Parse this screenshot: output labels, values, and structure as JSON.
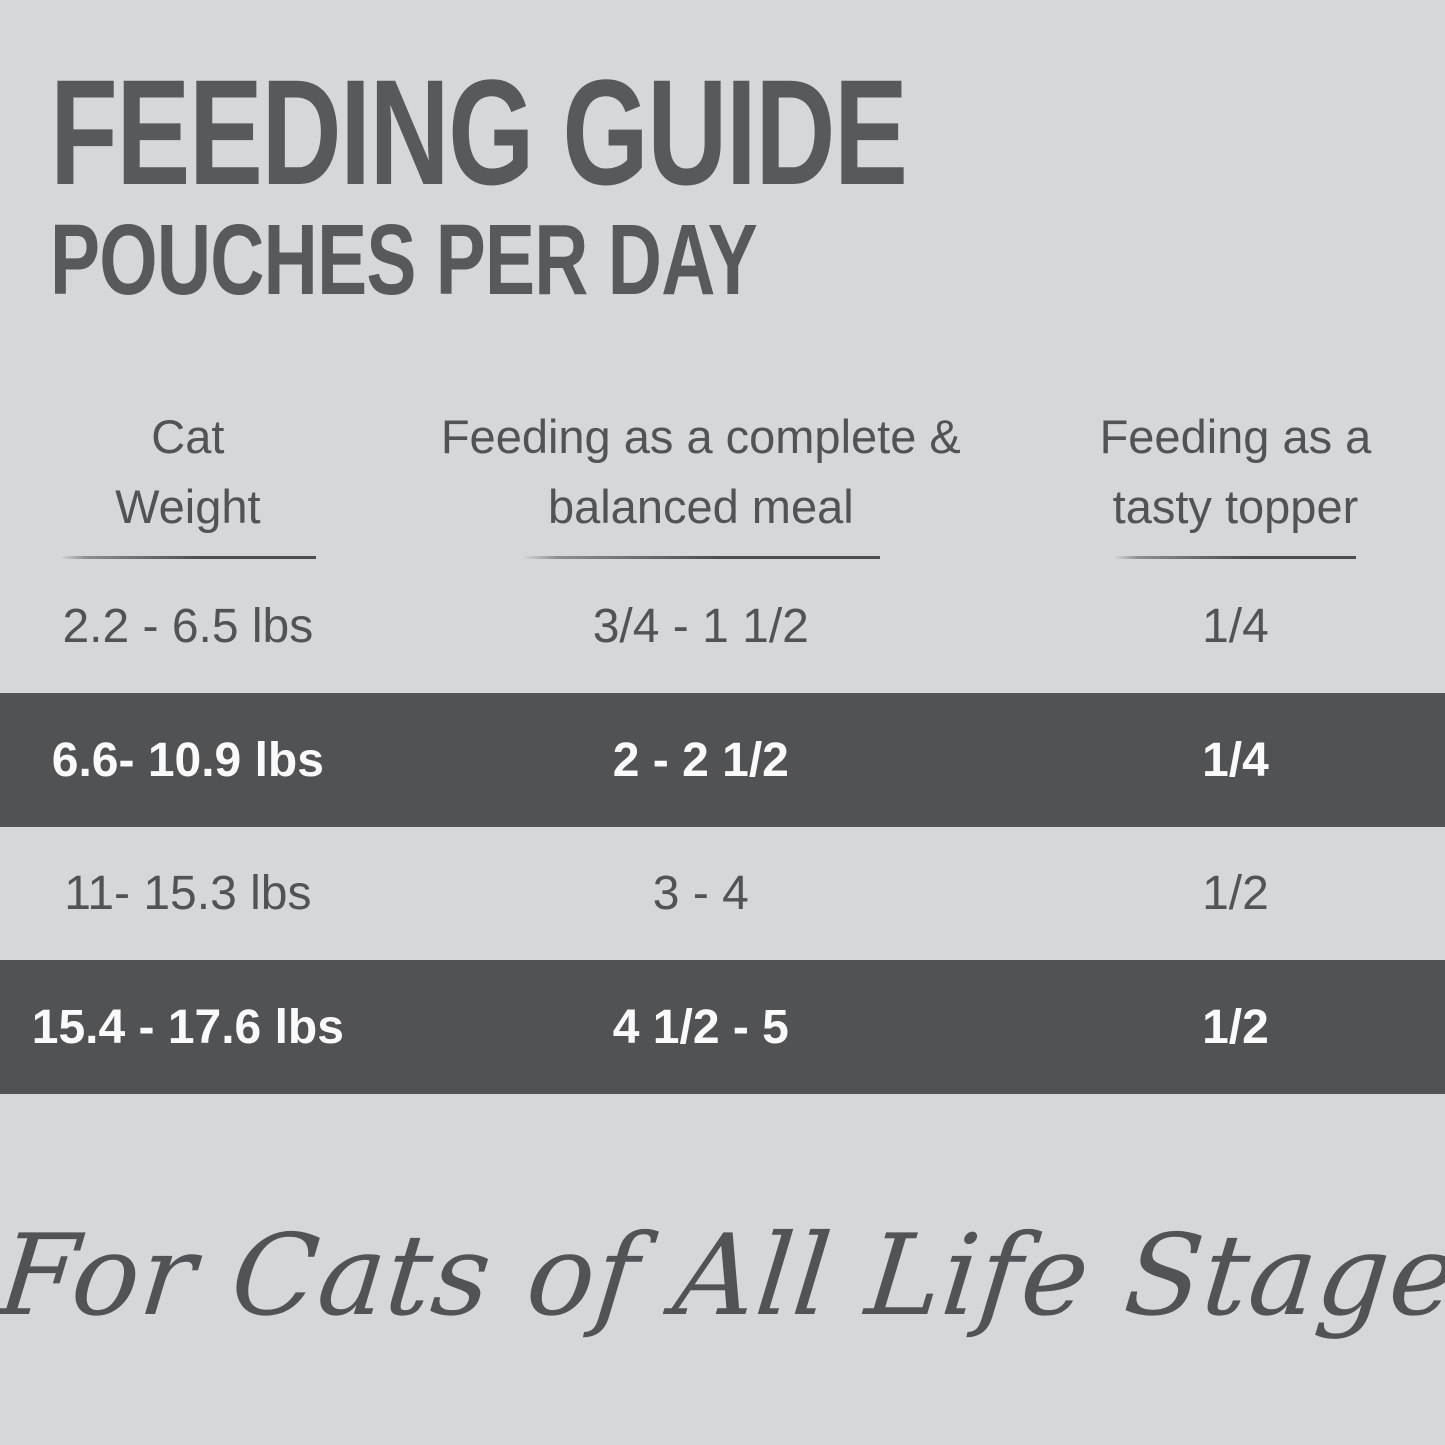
{
  "header": {
    "title": "FEEDING GUIDE",
    "subtitle": "POUCHES PER DAY"
  },
  "table": {
    "columns": [
      {
        "line1": "Cat",
        "line2": "Weight"
      },
      {
        "line1": "Feeding as a complete &",
        "line2": "balanced meal"
      },
      {
        "line1": "Feeding as a",
        "line2": "tasty topper"
      }
    ],
    "rows": [
      {
        "cat_weight": "2.2 - 6.5 lbs",
        "complete_meal": "3/4 - 1 1/2",
        "tasty_topper": "1/4",
        "highlighted": false
      },
      {
        "cat_weight": "6.6- 10.9 lbs",
        "complete_meal": "2 - 2 1/2",
        "tasty_topper": "1/4",
        "highlighted": true
      },
      {
        "cat_weight": "11- 15.3 lbs",
        "complete_meal": "3 - 4",
        "tasty_topper": "1/2",
        "highlighted": false
      },
      {
        "cat_weight": "15.4 - 17.6 lbs",
        "complete_meal": "4 1/2 - 5",
        "tasty_topper": "1/2",
        "highlighted": true
      }
    ]
  },
  "footer": {
    "tagline": "For Cats of All Life Stages"
  },
  "colors": {
    "background": "#d6d7d9",
    "row-highlight": "#515254",
    "text-primary": "#525356",
    "text-inverse": "#fafafa",
    "title": "#58595b"
  },
  "chart_data": {
    "type": "table",
    "title": "FEEDING GUIDE",
    "subtitle": "POUCHES PER DAY",
    "columns": [
      "Cat Weight",
      "Feeding as a complete & balanced meal",
      "Feeding as a tasty topper"
    ],
    "rows": [
      [
        "2.2 - 6.5 lbs",
        "3/4 - 1 1/2",
        "1/4"
      ],
      [
        "6.6- 10.9 lbs",
        "2 - 2 1/2",
        "1/4"
      ],
      [
        "11- 15.3 lbs",
        "3 - 4",
        "1/2"
      ],
      [
        "15.4 - 17.6 lbs",
        "4 1/2 - 5",
        "1/2"
      ]
    ],
    "highlighted_row_indices": [
      1,
      3
    ],
    "footnote": "For Cats of All Life Stages",
    "notes": "Feeding guide table: pouches per day by cat weight; alternating rows highlighted with dark background and white text"
  }
}
